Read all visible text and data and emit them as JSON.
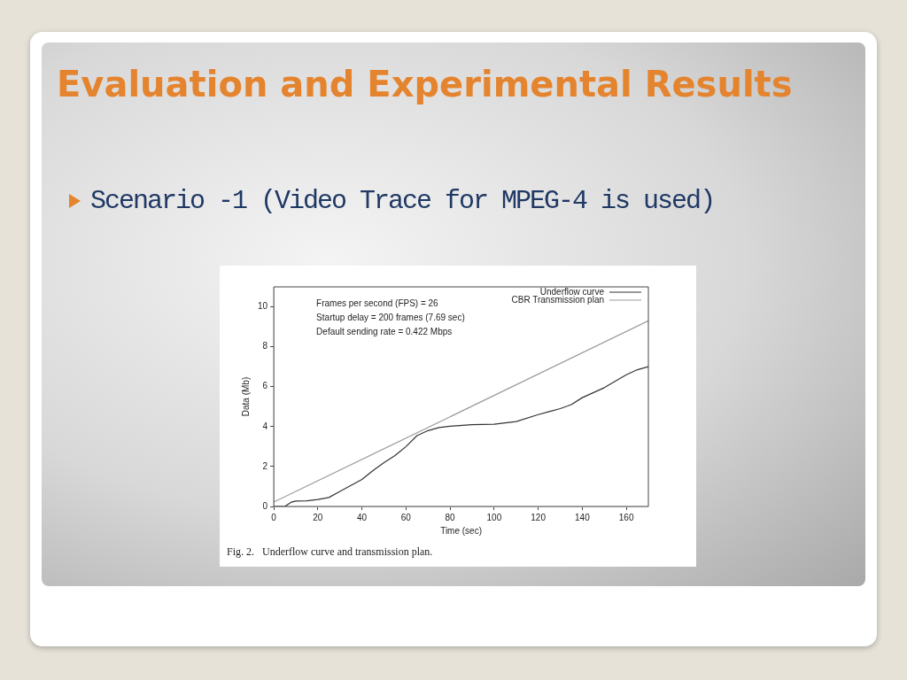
{
  "chart_data": {
    "type": "line",
    "title": "Evaluation and Experimental Results",
    "subtitle": "Scenario -1 (Video Trace for MPEG-4 is used)",
    "xlabel": "Time (sec)",
    "ylabel": "Data (Mb)",
    "xlim": [
      0,
      170
    ],
    "xticks": [
      0,
      20,
      40,
      60,
      80,
      100,
      120,
      140,
      160
    ],
    "ylim": [
      0,
      11
    ],
    "yticks": [
      0,
      2,
      4,
      6,
      8,
      10
    ],
    "legend": "top right",
    "marker": "none",
    "line_style": "solid",
    "annotations": [
      "Frames per second (FPS) = 26",
      "Startup delay = 200 frames (7.69 sec)",
      "Default sending rate = 0.422 Mbps",
      "Fig. 2.   Underflow curve and transmission plan."
    ],
    "series": [
      {
        "name": "Underflow curve",
        "color": "#333333",
        "x": [
          0,
          5,
          8,
          10,
          15,
          20,
          25,
          30,
          35,
          40,
          45,
          50,
          55,
          60,
          65,
          70,
          75,
          80,
          90,
          100,
          110,
          120,
          125,
          130,
          135,
          140,
          150,
          160,
          165,
          170
        ],
        "values": [
          0,
          0,
          0.22,
          0.27,
          0.28,
          0.35,
          0.45,
          0.75,
          1.05,
          1.35,
          1.8,
          2.2,
          2.55,
          3.0,
          3.55,
          3.8,
          3.95,
          4.02,
          4.1,
          4.12,
          4.25,
          4.6,
          4.75,
          4.9,
          5.1,
          5.45,
          5.95,
          6.6,
          6.85,
          7.0
        ]
      },
      {
        "name": "CBR Transmission plan",
        "color": "#999999",
        "x": [
          0,
          170
        ],
        "values": [
          0.22,
          9.3
        ]
      }
    ]
  }
}
